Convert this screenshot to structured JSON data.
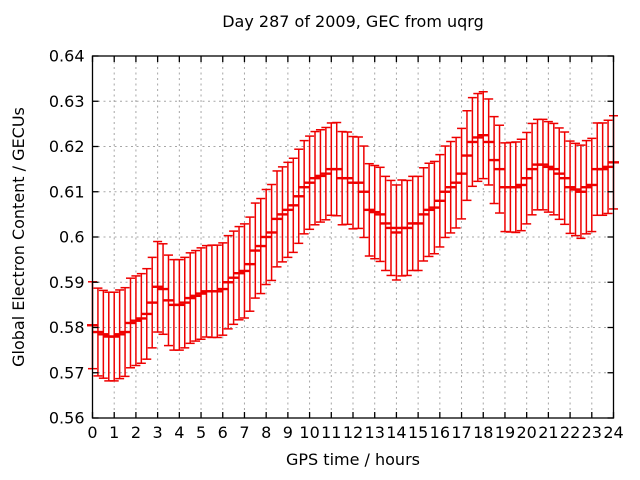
{
  "chart_data": {
    "type": "yerrorbars",
    "title": "Day 287 of 2009, GEC from uqrg",
    "xlabel": "GPS time / hours",
    "ylabel": "Global Electron Content / GECUs",
    "xlim": [
      0,
      24
    ],
    "ylim": [
      0.56,
      0.64
    ],
    "grid": true,
    "legend": "none",
    "series_color": "#ee0000",
    "grid_color": "#a6a6a6",
    "axis_color": "#000000",
    "xtick_values": [
      0,
      1,
      2,
      3,
      4,
      5,
      6,
      7,
      8,
      9,
      10,
      11,
      12,
      13,
      14,
      15,
      16,
      17,
      18,
      19,
      20,
      21,
      22,
      23,
      24
    ],
    "xtick_labels": [
      "0",
      "1",
      "2",
      "3",
      "4",
      "5",
      "6",
      "7",
      "8",
      "9",
      "10",
      "11",
      "12",
      "13",
      "14",
      "15",
      "16",
      "17",
      "18",
      "19",
      "20",
      "21",
      "22",
      "23",
      "24"
    ],
    "ytick_values": [
      0.56,
      0.57,
      0.58,
      0.59,
      0.6,
      0.61,
      0.62,
      0.63,
      0.64
    ],
    "ytick_labels": [
      "0.56",
      "0.57",
      "0.58",
      "0.59",
      "0.6",
      "0.61",
      "0.62",
      "0.63",
      "0.64"
    ],
    "x": [
      0,
      0.25,
      0.5,
      0.75,
      1,
      1.25,
      1.5,
      1.75,
      2,
      2.25,
      2.5,
      2.75,
      3,
      3.25,
      3.5,
      3.75,
      4,
      4.25,
      4.5,
      4.75,
      5,
      5.25,
      5.5,
      5.75,
      6,
      6.25,
      6.5,
      6.75,
      7,
      7.25,
      7.5,
      7.75,
      8,
      8.25,
      8.5,
      8.75,
      9,
      9.25,
      9.5,
      9.75,
      10,
      10.25,
      10.5,
      10.75,
      11,
      11.25,
      11.5,
      11.75,
      12,
      12.25,
      12.5,
      12.75,
      13,
      13.25,
      13.5,
      13.75,
      14,
      14.25,
      14.5,
      14.75,
      15,
      15.25,
      15.5,
      15.75,
      16,
      16.25,
      16.5,
      16.75,
      17,
      17.25,
      17.5,
      17.75,
      18,
      18.25,
      18.5,
      18.75,
      19,
      19.25,
      19.5,
      19.75,
      20,
      20.25,
      20.5,
      20.75,
      21,
      21.25,
      21.5,
      21.75,
      22,
      22.25,
      22.5,
      22.75,
      23,
      23.25,
      23.5,
      23.75,
      24
    ],
    "y": [
      0.5805,
      0.579,
      0.5785,
      0.578,
      0.578,
      0.5785,
      0.579,
      0.581,
      0.5815,
      0.582,
      0.583,
      0.5855,
      0.589,
      0.5885,
      0.586,
      0.585,
      0.585,
      0.5855,
      0.5865,
      0.587,
      0.5875,
      0.588,
      0.588,
      0.588,
      0.5885,
      0.59,
      0.591,
      0.592,
      0.5925,
      0.594,
      0.597,
      0.598,
      0.6,
      0.601,
      0.604,
      0.605,
      0.606,
      0.607,
      0.609,
      0.611,
      0.612,
      0.613,
      0.6135,
      0.614,
      0.615,
      0.615,
      0.613,
      0.613,
      0.612,
      0.612,
      0.61,
      0.606,
      0.6055,
      0.605,
      0.603,
      0.602,
      0.601,
      0.602,
      0.602,
      0.603,
      0.603,
      0.605,
      0.606,
      0.6065,
      0.608,
      0.61,
      0.611,
      0.612,
      0.614,
      0.618,
      0.621,
      0.622,
      0.6225,
      0.621,
      0.617,
      0.615,
      0.611,
      0.611,
      0.611,
      0.6115,
      0.613,
      0.615,
      0.616,
      0.616,
      0.6155,
      0.615,
      0.614,
      0.613,
      0.611,
      0.6105,
      0.61,
      0.611,
      0.6115,
      0.615,
      0.615,
      0.6155,
      0.6165
    ],
    "yerr": [
      0.0096,
      0.0097,
      0.0097,
      0.0098,
      0.0098,
      0.0098,
      0.0098,
      0.0099,
      0.0099,
      0.0099,
      0.01,
      0.01,
      0.01,
      0.01,
      0.01,
      0.01,
      0.01,
      0.01,
      0.01,
      0.01,
      0.0101,
      0.0101,
      0.0102,
      0.0102,
      0.0102,
      0.0103,
      0.0103,
      0.0103,
      0.0104,
      0.0104,
      0.0105,
      0.0105,
      0.0105,
      0.0106,
      0.0106,
      0.0105,
      0.0105,
      0.0104,
      0.0104,
      0.0103,
      0.0103,
      0.0103,
      0.0102,
      0.0102,
      0.0102,
      0.0103,
      0.0103,
      0.0102,
      0.0102,
      0.0101,
      0.0101,
      0.0102,
      0.0103,
      0.0104,
      0.0104,
      0.0105,
      0.0105,
      0.0106,
      0.0105,
      0.0104,
      0.0104,
      0.0103,
      0.0103,
      0.0102,
      0.0102,
      0.0101,
      0.0101,
      0.01,
      0.01,
      0.0099,
      0.0098,
      0.0097,
      0.0096,
      0.0095,
      0.0096,
      0.0097,
      0.0098,
      0.0099,
      0.01,
      0.0101,
      0.0101,
      0.0101,
      0.01,
      0.01,
      0.01,
      0.0101,
      0.0101,
      0.0102,
      0.0102,
      0.0102,
      0.0103,
      0.0103,
      0.0103,
      0.0102,
      0.0102,
      0.0103,
      0.0103
    ]
  }
}
